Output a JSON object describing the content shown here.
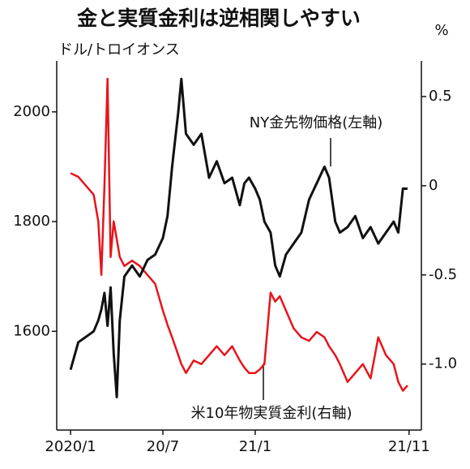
{
  "chart_data": {
    "type": "line",
    "title": "金と実質金利は逆相関しやすい",
    "ylabel": "ドル/トロイオンス",
    "y2label": "%",
    "x": [
      0,
      0.5,
      1,
      1.5,
      1.8,
      2,
      2.2,
      2.4,
      2.6,
      2.8,
      3,
      3.2,
      3.5,
      4,
      4.5,
      5,
      5.5,
      6,
      6.3,
      6.6,
      7,
      7.2,
      7.5,
      8,
      8.5,
      9,
      9.5,
      10,
      10.5,
      11,
      11.3,
      11.6,
      12,
      12.3,
      12.6,
      13,
      13.3,
      13.6,
      14,
      14.5,
      15,
      15.5,
      16,
      16.5,
      16.8,
      17.2,
      17.5,
      18,
      18.5,
      19,
      19.5,
      20,
      20.5,
      21,
      21.3,
      21.6,
      21.9
    ],
    "xlim": [
      -0.9,
      22.8
    ],
    "xticks": [
      {
        "value": 0,
        "label": "2020/1"
      },
      {
        "value": 6,
        "label": "20/7"
      },
      {
        "value": 12,
        "label": "21/1"
      },
      {
        "value": 22,
        "label": "21/11"
      }
    ],
    "ylim": [
      1420,
      2093
    ],
    "yticks": [
      1600,
      1800,
      2000
    ],
    "y2lim": [
      -1.37,
      0.7
    ],
    "y2ticks": [
      {
        "value": -1,
        "label": "-1.0"
      },
      -0.5,
      0,
      0.5
    ],
    "series": [
      {
        "name": "NY金先物価格(左軸)",
        "color": "#111111",
        "values": [
          1530,
          1580,
          1590,
          1600,
          1620,
          1640,
          1670,
          1610,
          1680,
          1560,
          1480,
          1620,
          1700,
          1720,
          1700,
          1730,
          1740,
          1770,
          1810,
          1900,
          2000,
          2060,
          1960,
          1940,
          1960,
          1880,
          1910,
          1870,
          1880,
          1830,
          1870,
          1880,
          1860,
          1840,
          1800,
          1780,
          1720,
          1700,
          1740,
          1760,
          1780,
          1840,
          1870,
          1900,
          1880,
          1800,
          1780,
          1790,
          1810,
          1770,
          1790,
          1760,
          1780,
          1800,
          1780,
          1860,
          1860
        ]
      },
      {
        "name": "米10年物実質金利(右軸)",
        "color": "#e8141b",
        "axis": "y2",
        "values": [
          0.07,
          0.05,
          0.0,
          -0.05,
          -0.2,
          -0.5,
          0.0,
          0.6,
          -0.4,
          -0.2,
          -0.3,
          -0.4,
          -0.45,
          -0.42,
          -0.45,
          -0.5,
          -0.55,
          -0.7,
          -0.78,
          -0.85,
          -0.95,
          -1.0,
          -1.05,
          -0.98,
          -1.0,
          -0.95,
          -0.9,
          -0.95,
          -0.9,
          -0.98,
          -1.02,
          -1.05,
          -1.05,
          -1.03,
          -1.0,
          -0.6,
          -0.65,
          -0.62,
          -0.7,
          -0.8,
          -0.85,
          -0.87,
          -0.82,
          -0.85,
          -0.9,
          -0.95,
          -1.0,
          -1.1,
          -1.05,
          -1.0,
          -1.08,
          -0.85,
          -0.95,
          -1.0,
          -1.1,
          -1.15,
          -1.12
        ]
      }
    ]
  }
}
